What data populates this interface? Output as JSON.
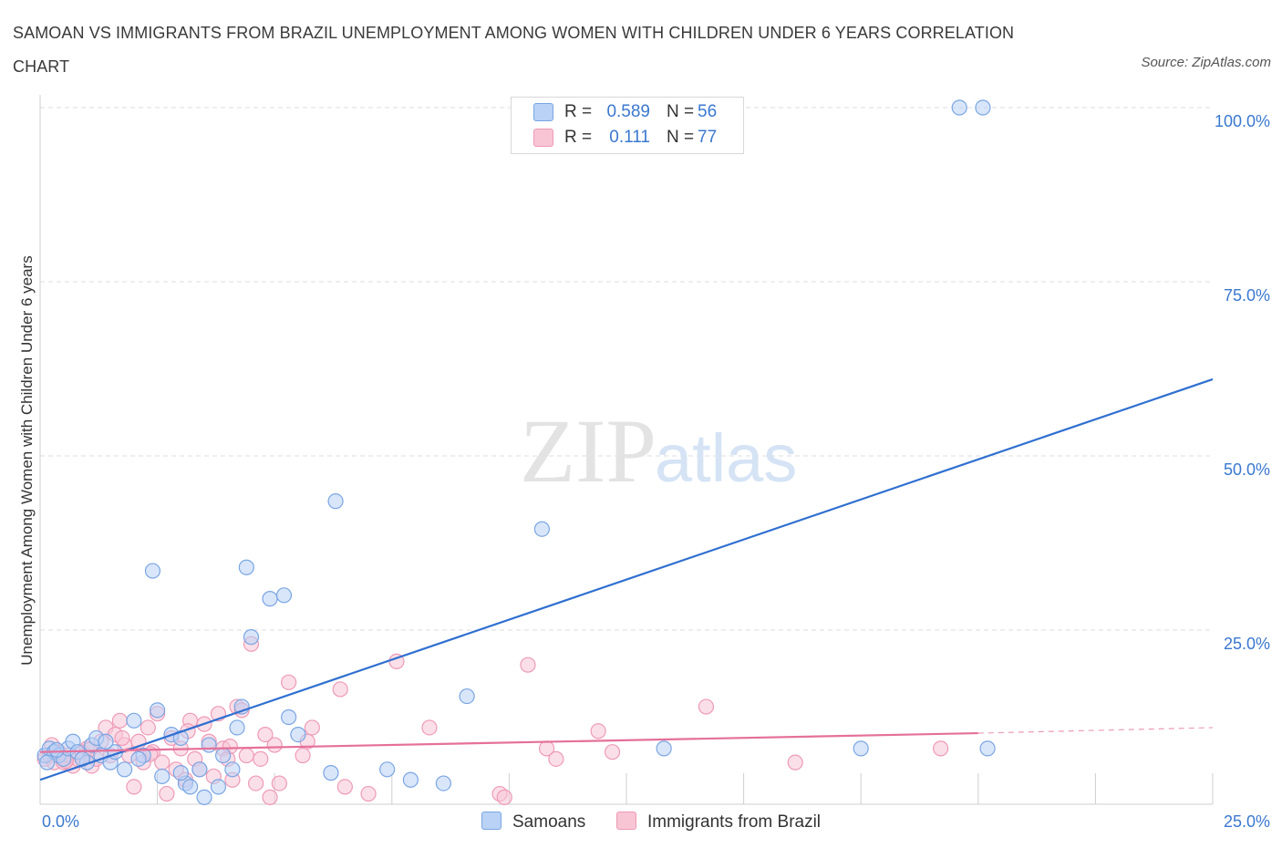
{
  "title": "SAMOAN VS IMMIGRANTS FROM BRAZIL UNEMPLOYMENT AMONG WOMEN WITH CHILDREN UNDER 6 YEARS CORRELATION CHART",
  "source": "Source: ZipAtlas.com",
  "watermark": {
    "zip": "ZIP",
    "atlas": "atlas"
  },
  "colors": {
    "samoans_fill": "#b9d2f5",
    "samoans_stroke": "#7aa6e3",
    "samoans_line": "#2f6fd0",
    "brazil_fill": "#f8c5d5",
    "brazil_stroke": "#ee9ab6",
    "brazil_line": "#e5709a",
    "value_text": "#3a78d0",
    "grid": "#dcdcdc"
  },
  "legend": {
    "rows": [
      {
        "r_key": "R =",
        "r_value": "0.589",
        "n_key": "N =",
        "n_value": "56"
      },
      {
        "r_key": "R =",
        "r_value": "0.111",
        "n_key": "N =",
        "n_value": "77"
      }
    ]
  },
  "chart_data": {
    "type": "scatter",
    "title": "SAMOAN VS IMMIGRANTS FROM BRAZIL UNEMPLOYMENT AMONG WOMEN WITH CHILDREN UNDER 6 YEARS CORRELATION CHART",
    "xlabel": "",
    "ylabel": "Unemployment Among Women with Children Under 6 years",
    "xlim": [
      0,
      25
    ],
    "ylim": [
      0,
      100
    ],
    "x_tick_labels": [
      "0.0%",
      "25.0%"
    ],
    "y_tick_labels": [
      "25.0%",
      "50.0%",
      "75.0%",
      "100.0%"
    ],
    "y_ticks": [
      25,
      50,
      75,
      100
    ],
    "grid": true,
    "legend_position": "top-center",
    "series": [
      {
        "name": "Samoans",
        "r": 0.589,
        "n": 56,
        "trend": {
          "x": [
            0,
            25
          ],
          "y": [
            3.5,
            61.0
          ]
        },
        "points": [
          [
            0.1,
            7.0
          ],
          [
            0.2,
            8.0
          ],
          [
            0.3,
            7.5
          ],
          [
            0.4,
            7.0
          ],
          [
            0.5,
            6.5
          ],
          [
            0.6,
            8.0
          ],
          [
            0.7,
            9.0
          ],
          [
            0.8,
            7.5
          ],
          [
            1.0,
            6.0
          ],
          [
            1.1,
            8.5
          ],
          [
            1.2,
            9.5
          ],
          [
            1.3,
            7.0
          ],
          [
            1.5,
            6.0
          ],
          [
            1.6,
            7.5
          ],
          [
            1.8,
            5.0
          ],
          [
            2.0,
            12.0
          ],
          [
            2.2,
            7.0
          ],
          [
            2.4,
            33.5
          ],
          [
            2.5,
            13.5
          ],
          [
            2.6,
            4.0
          ],
          [
            2.8,
            10.0
          ],
          [
            3.0,
            9.5
          ],
          [
            3.1,
            3.0
          ],
          [
            3.2,
            2.5
          ],
          [
            3.4,
            5.0
          ],
          [
            3.5,
            1.0
          ],
          [
            3.6,
            8.5
          ],
          [
            3.8,
            2.5
          ],
          [
            3.9,
            7.0
          ],
          [
            4.1,
            5.0
          ],
          [
            4.2,
            11.0
          ],
          [
            4.3,
            14.0
          ],
          [
            4.4,
            34.0
          ],
          [
            4.5,
            24.0
          ],
          [
            4.9,
            29.5
          ],
          [
            5.2,
            30.0
          ],
          [
            5.3,
            12.5
          ],
          [
            5.5,
            10.0
          ],
          [
            6.2,
            4.5
          ],
          [
            6.3,
            43.5
          ],
          [
            7.4,
            5.0
          ],
          [
            7.9,
            3.5
          ],
          [
            8.6,
            3.0
          ],
          [
            9.1,
            15.5
          ],
          [
            10.7,
            39.5
          ],
          [
            13.3,
            8.0
          ],
          [
            17.5,
            8.0
          ],
          [
            19.6,
            100.0
          ],
          [
            20.1,
            100.0
          ],
          [
            20.2,
            8.0
          ],
          [
            0.15,
            6.0
          ],
          [
            0.35,
            7.8
          ],
          [
            0.9,
            6.5
          ],
          [
            1.4,
            9.0
          ],
          [
            2.1,
            6.5
          ],
          [
            3.0,
            4.5
          ]
        ]
      },
      {
        "name": "Immigrants from Brazil",
        "r": 0.111,
        "n": 77,
        "trend": {
          "x": [
            0,
            20
          ],
          "y": [
            7.5,
            10.2
          ]
        },
        "trend_ext": {
          "x": [
            20,
            25
          ],
          "y": [
            10.2,
            11.0
          ]
        },
        "points": [
          [
            0.1,
            6.5
          ],
          [
            0.2,
            7.0
          ],
          [
            0.3,
            6.0
          ],
          [
            0.4,
            7.5
          ],
          [
            0.5,
            6.0
          ],
          [
            0.6,
            7.0
          ],
          [
            0.7,
            5.5
          ],
          [
            0.8,
            6.5
          ],
          [
            0.9,
            7.5
          ],
          [
            1.0,
            8.0
          ],
          [
            1.1,
            5.5
          ],
          [
            1.2,
            6.5
          ],
          [
            1.3,
            9.0
          ],
          [
            1.4,
            11.0
          ],
          [
            1.5,
            7.0
          ],
          [
            1.6,
            10.0
          ],
          [
            1.7,
            12.0
          ],
          [
            1.8,
            8.5
          ],
          [
            1.9,
            7.0
          ],
          [
            2.0,
            2.5
          ],
          [
            2.1,
            9.0
          ],
          [
            2.2,
            6.0
          ],
          [
            2.3,
            11.0
          ],
          [
            2.4,
            7.5
          ],
          [
            2.5,
            13.0
          ],
          [
            2.6,
            6.0
          ],
          [
            2.7,
            1.5
          ],
          [
            2.8,
            9.5
          ],
          [
            2.9,
            5.0
          ],
          [
            3.0,
            8.0
          ],
          [
            3.1,
            3.5
          ],
          [
            3.2,
            12.0
          ],
          [
            3.3,
            6.5
          ],
          [
            3.4,
            5.0
          ],
          [
            3.5,
            11.5
          ],
          [
            3.6,
            9.0
          ],
          [
            3.7,
            4.0
          ],
          [
            3.8,
            13.0
          ],
          [
            3.9,
            8.0
          ],
          [
            4.0,
            6.5
          ],
          [
            4.1,
            3.5
          ],
          [
            4.2,
            14.0
          ],
          [
            4.3,
            13.5
          ],
          [
            4.4,
            7.0
          ],
          [
            4.5,
            23.0
          ],
          [
            4.6,
            3.0
          ],
          [
            4.7,
            6.5
          ],
          [
            4.8,
            10.0
          ],
          [
            4.9,
            1.0
          ],
          [
            5.0,
            8.5
          ],
          [
            5.1,
            3.0
          ],
          [
            5.3,
            17.5
          ],
          [
            5.6,
            7.0
          ],
          [
            5.7,
            9.0
          ],
          [
            5.8,
            11.0
          ],
          [
            6.4,
            16.5
          ],
          [
            6.5,
            2.5
          ],
          [
            7.0,
            1.5
          ],
          [
            7.6,
            20.5
          ],
          [
            8.3,
            11.0
          ],
          [
            9.8,
            1.5
          ],
          [
            9.9,
            1.0
          ],
          [
            10.4,
            20.0
          ],
          [
            10.8,
            8.0
          ],
          [
            11.0,
            6.5
          ],
          [
            11.9,
            10.5
          ],
          [
            12.2,
            7.5
          ],
          [
            14.2,
            14.0
          ],
          [
            16.1,
            6.0
          ],
          [
            19.2,
            8.0
          ],
          [
            0.25,
            8.5
          ],
          [
            0.55,
            6.2
          ],
          [
            1.05,
            7.8
          ],
          [
            1.75,
            9.5
          ],
          [
            2.35,
            7.2
          ],
          [
            3.15,
            10.5
          ],
          [
            4.05,
            8.3
          ]
        ]
      }
    ]
  }
}
